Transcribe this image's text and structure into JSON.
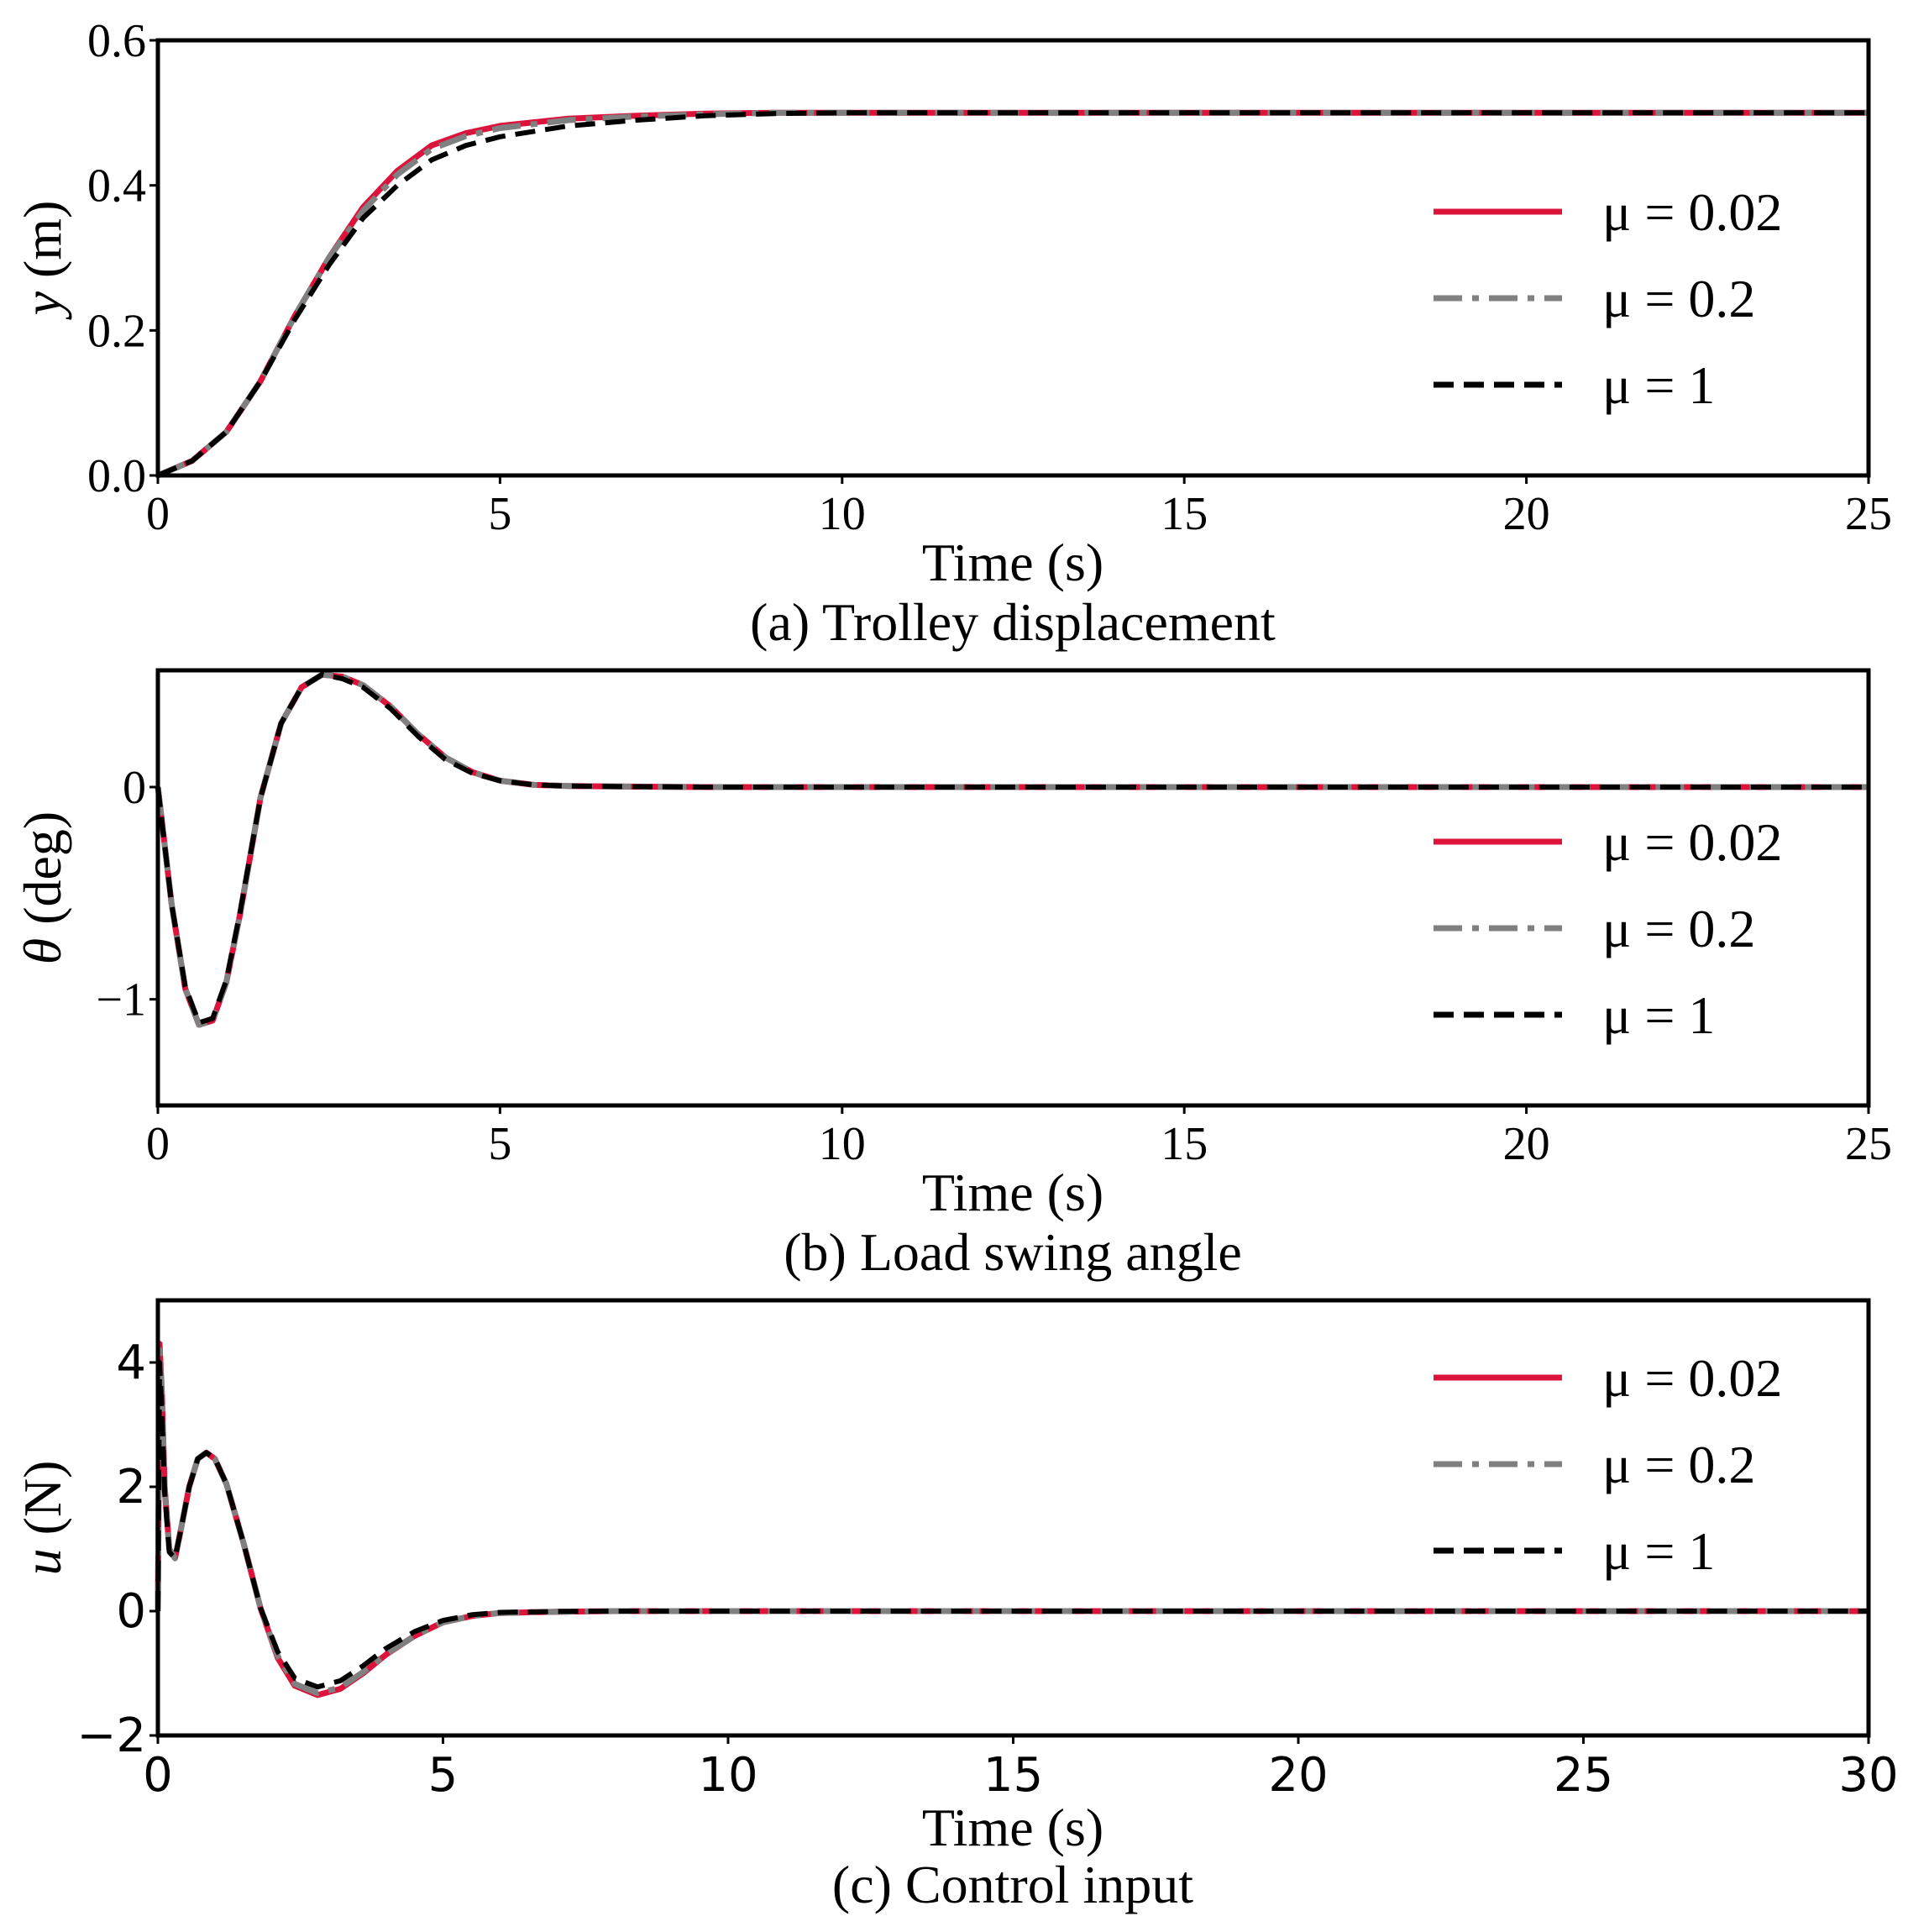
{
  "colors": {
    "red": "#dc143c",
    "gray": "#808080",
    "black": "#000000"
  },
  "legend_entries": [
    {
      "label": "μ = 0.02",
      "color": "#dc143c",
      "style": "solid"
    },
    {
      "label": "μ = 0.2",
      "color": "#808080",
      "style": "dashdot"
    },
    {
      "label": "μ = 1",
      "color": "#000000",
      "style": "dashed"
    }
  ],
  "chart_data": [
    {
      "type": "line",
      "caption": "(a) Trolley displacement",
      "xlabel": "Time (s)",
      "ylabel_symbol": "y",
      "ylabel_unit": " (m)",
      "xlim": [
        0,
        25
      ],
      "ylim": [
        0,
        0.6
      ],
      "xticks": [
        0,
        5,
        10,
        15,
        20,
        25
      ],
      "xtick_labels": [
        "0",
        "5",
        "10",
        "15",
        "20",
        "25"
      ],
      "yticks": [
        0,
        0.2,
        0.4,
        0.6
      ],
      "ytick_labels": [
        "0.0",
        "0.2",
        "0.4",
        "0.6"
      ],
      "legend": "right",
      "x": [
        0,
        0.5,
        1,
        1.5,
        2,
        2.5,
        3,
        3.5,
        4,
        4.5,
        5,
        6,
        7,
        8,
        9,
        10,
        15,
        20,
        25
      ],
      "series": [
        {
          "name": "μ = 0.02",
          "values": [
            0,
            0.02,
            0.06,
            0.13,
            0.22,
            0.3,
            0.37,
            0.42,
            0.455,
            0.472,
            0.482,
            0.492,
            0.496,
            0.499,
            0.5,
            0.5,
            0.5,
            0.5,
            0.5
          ]
        },
        {
          "name": "μ = 0.2",
          "values": [
            0,
            0.02,
            0.06,
            0.13,
            0.22,
            0.3,
            0.365,
            0.415,
            0.45,
            0.468,
            0.479,
            0.49,
            0.495,
            0.498,
            0.5,
            0.5,
            0.5,
            0.5,
            0.5
          ]
        },
        {
          "name": "μ = 1",
          "values": [
            0,
            0.02,
            0.06,
            0.13,
            0.215,
            0.29,
            0.355,
            0.4,
            0.435,
            0.455,
            0.467,
            0.482,
            0.49,
            0.496,
            0.499,
            0.5,
            0.5,
            0.5,
            0.5
          ]
        }
      ]
    },
    {
      "type": "line",
      "caption": "(b) Load swing angle",
      "xlabel": "Time (s)",
      "ylabel_symbol": "θ",
      "ylabel_unit": " (deg)",
      "xlim": [
        0,
        25
      ],
      "ylim": [
        -1.5,
        0.55
      ],
      "xticks": [
        0,
        5,
        10,
        15,
        20,
        25
      ],
      "xtick_labels": [
        "0",
        "5",
        "10",
        "15",
        "20",
        "25"
      ],
      "yticks": [
        -1,
        0
      ],
      "ytick_labels": [
        "−1",
        "0"
      ],
      "legend": "right",
      "x": [
        0,
        0.2,
        0.4,
        0.6,
        0.8,
        1.0,
        1.2,
        1.5,
        1.8,
        2.1,
        2.4,
        2.7,
        3.0,
        3.4,
        3.8,
        4.2,
        4.6,
        5.0,
        5.5,
        6.0,
        7.0,
        8.0,
        10,
        15,
        20,
        25
      ],
      "series": [
        {
          "name": "μ = 0.02",
          "values": [
            0,
            -0.55,
            -0.95,
            -1.12,
            -1.1,
            -0.92,
            -0.6,
            -0.05,
            0.3,
            0.47,
            0.53,
            0.52,
            0.48,
            0.38,
            0.25,
            0.14,
            0.07,
            0.03,
            0.01,
            0.005,
            0.002,
            0,
            0,
            0,
            0,
            0
          ]
        },
        {
          "name": "μ = 0.2",
          "values": [
            0,
            -0.55,
            -0.95,
            -1.12,
            -1.1,
            -0.92,
            -0.6,
            -0.05,
            0.3,
            0.47,
            0.53,
            0.52,
            0.48,
            0.38,
            0.25,
            0.14,
            0.07,
            0.03,
            0.01,
            0.005,
            0.002,
            0,
            0,
            0,
            0,
            0
          ]
        },
        {
          "name": "μ = 1",
          "values": [
            0,
            -0.55,
            -0.94,
            -1.11,
            -1.09,
            -0.91,
            -0.59,
            -0.05,
            0.3,
            0.47,
            0.53,
            0.51,
            0.47,
            0.37,
            0.24,
            0.13,
            0.065,
            0.03,
            0.01,
            0.005,
            0.002,
            0,
            0,
            0,
            0,
            0
          ]
        }
      ]
    },
    {
      "type": "line",
      "caption": "(c) Control input",
      "xlabel": "Time (s)",
      "ylabel_symbol": "u",
      "ylabel_unit": " (N)",
      "xlim": [
        0,
        30
      ],
      "ylim": [
        -2,
        5
      ],
      "xticks": [
        0,
        5,
        10,
        15,
        20,
        25,
        30
      ],
      "xtick_labels": [
        "0",
        "5",
        "10",
        "15",
        "20",
        "25",
        "30"
      ],
      "yticks": [
        -2,
        0,
        2,
        4
      ],
      "ytick_labels": [
        "−2",
        "0",
        "2",
        "4"
      ],
      "legend": "top-right",
      "x": [
        0,
        0.03,
        0.07,
        0.12,
        0.2,
        0.3,
        0.4,
        0.55,
        0.7,
        0.85,
        1.0,
        1.2,
        1.5,
        1.8,
        2.1,
        2.4,
        2.8,
        3.2,
        3.6,
        4.0,
        4.5,
        5.0,
        5.5,
        6.0,
        7.0,
        8.0,
        10,
        15,
        20,
        25,
        30
      ],
      "series": [
        {
          "name": "μ = 0.02",
          "values": [
            0,
            4.3,
            3.5,
            2.0,
            1.0,
            0.85,
            1.3,
            2.0,
            2.45,
            2.55,
            2.45,
            2.05,
            1.1,
            0.05,
            -0.75,
            -1.2,
            -1.35,
            -1.25,
            -1.0,
            -0.7,
            -0.4,
            -0.18,
            -0.08,
            -0.03,
            -0.01,
            0,
            0,
            0,
            0,
            0,
            0
          ]
        },
        {
          "name": "μ = 0.2",
          "values": [
            0,
            4.2,
            3.4,
            1.95,
            1.0,
            0.85,
            1.3,
            2.0,
            2.45,
            2.55,
            2.45,
            2.05,
            1.1,
            0.05,
            -0.72,
            -1.17,
            -1.32,
            -1.23,
            -0.98,
            -0.69,
            -0.4,
            -0.18,
            -0.08,
            -0.03,
            -0.01,
            0,
            0,
            0,
            0,
            0,
            0
          ]
        },
        {
          "name": "μ = 1",
          "values": [
            0,
            4.0,
            3.2,
            1.9,
            0.95,
            0.85,
            1.3,
            2.0,
            2.45,
            2.55,
            2.45,
            2.05,
            1.1,
            0.05,
            -0.65,
            -1.08,
            -1.22,
            -1.12,
            -0.88,
            -0.6,
            -0.33,
            -0.15,
            -0.06,
            -0.02,
            -0.005,
            0,
            0,
            0,
            0,
            0,
            0
          ]
        }
      ]
    }
  ]
}
